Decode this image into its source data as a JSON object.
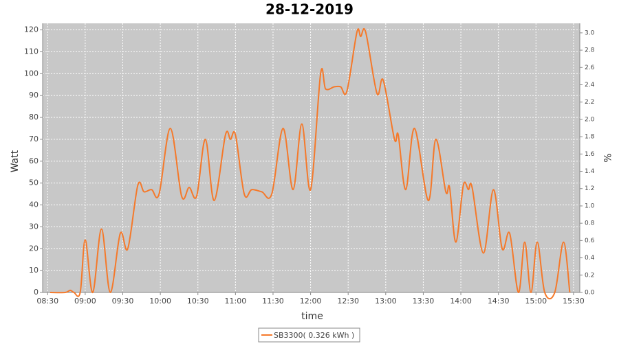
{
  "chart_data": {
    "type": "line",
    "title": "28-12-2019",
    "x_label": "time",
    "y_label": "Watt",
    "y2_label": "%",
    "x": [
      "08:32",
      "08:44",
      "08:48",
      "08:51",
      "08:56",
      "09:00",
      "09:06",
      "09:13",
      "09:20",
      "09:28",
      "09:34",
      "09:42",
      "09:47",
      "09:53",
      "09:59",
      "10:08",
      "10:17",
      "10:23",
      "10:29",
      "10:36",
      "10:43",
      "10:52",
      "10:56",
      "11:00",
      "11:07",
      "11:13",
      "11:21",
      "11:29",
      "11:38",
      "11:46",
      "11:53",
      "12:00",
      "12:08",
      "12:12",
      "12:19",
      "12:24",
      "12:29",
      "12:37",
      "12:40",
      "12:44",
      "12:53",
      "12:58",
      "13:07",
      "13:10",
      "13:16",
      "13:23",
      "13:34",
      "13:40",
      "13:48",
      "13:51",
      "13:56",
      "14:02",
      "14:06",
      "14:09",
      "14:18",
      "14:26",
      "14:33",
      "14:39",
      "14:46",
      "14:51",
      "14:56",
      "15:01",
      "15:07",
      "15:15",
      "15:22",
      "15:27"
    ],
    "series": [
      {
        "name": "SB3300( 0.326 kWh )",
        "color": "#f5792a",
        "values": [
          0,
          0,
          1,
          0,
          0,
          24,
          0,
          29,
          0,
          27,
          20,
          49,
          46,
          47,
          45,
          75,
          44,
          48,
          44,
          70,
          42,
          72,
          70,
          72,
          45,
          47,
          46,
          45,
          75,
          47,
          77,
          47,
          100,
          93,
          94,
          94,
          92,
          119,
          117,
          119,
          91,
          97,
          70,
          72,
          47,
          75,
          42,
          70,
          46,
          48,
          23,
          49,
          47,
          48,
          18,
          47,
          20,
          27,
          0,
          23,
          0,
          23,
          0,
          0,
          23,
          0
        ]
      }
    ],
    "xlim": [
      "08:26",
      "15:35"
    ],
    "xticks": [
      "08:30",
      "09:00",
      "09:30",
      "10:00",
      "10:30",
      "11:00",
      "11:30",
      "12:00",
      "12:30",
      "13:00",
      "13:30",
      "14:00",
      "14:30",
      "15:00",
      "15:30"
    ],
    "ylim": [
      0,
      123
    ],
    "yticks": [
      0,
      10,
      20,
      30,
      40,
      50,
      60,
      70,
      80,
      90,
      100,
      110,
      120
    ],
    "y2lim": [
      0,
      3.11
    ],
    "y2ticks": [
      {
        "value": 0,
        "label": "0.0"
      },
      0.2,
      0.4,
      0.6,
      0.8,
      {
        "value": 1,
        "label": "1.0"
      },
      1.2,
      1.4,
      1.6,
      1.8,
      {
        "value": 2,
        "label": "2.0"
      },
      2.2,
      2.4,
      2.6,
      2.8,
      {
        "value": 3,
        "label": "3.0"
      }
    ],
    "grid": true,
    "legend": "bottom"
  }
}
